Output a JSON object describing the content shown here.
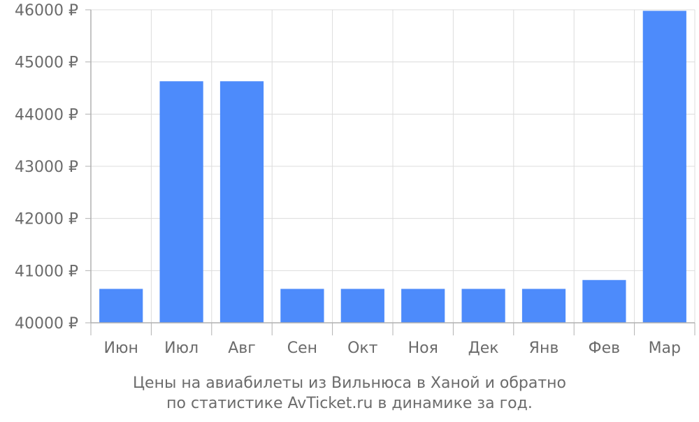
{
  "chart_data": {
    "type": "bar",
    "categories": [
      "Июн",
      "Июл",
      "Авг",
      "Сен",
      "Окт",
      "Ноя",
      "Дек",
      "Янв",
      "Фев",
      "Мар"
    ],
    "values": [
      40650,
      44630,
      44630,
      40650,
      40650,
      40650,
      40650,
      40650,
      40820,
      45980
    ],
    "ylim": [
      40000,
      46000
    ],
    "yticks": [
      40000,
      41000,
      42000,
      43000,
      44000,
      45000,
      46000
    ],
    "ytick_labels": [
      "40000 ₽",
      "41000 ₽",
      "42000 ₽",
      "43000 ₽",
      "44000 ₽",
      "45000 ₽",
      "46000 ₽"
    ],
    "grid": true,
    "bar_color": "#4d8bfb",
    "caption_line1": "Цены на авиабилеты из Вильнюса в Ханой и обратно",
    "caption_line2": "по статистике AvTicket.ru в динамике за год."
  }
}
